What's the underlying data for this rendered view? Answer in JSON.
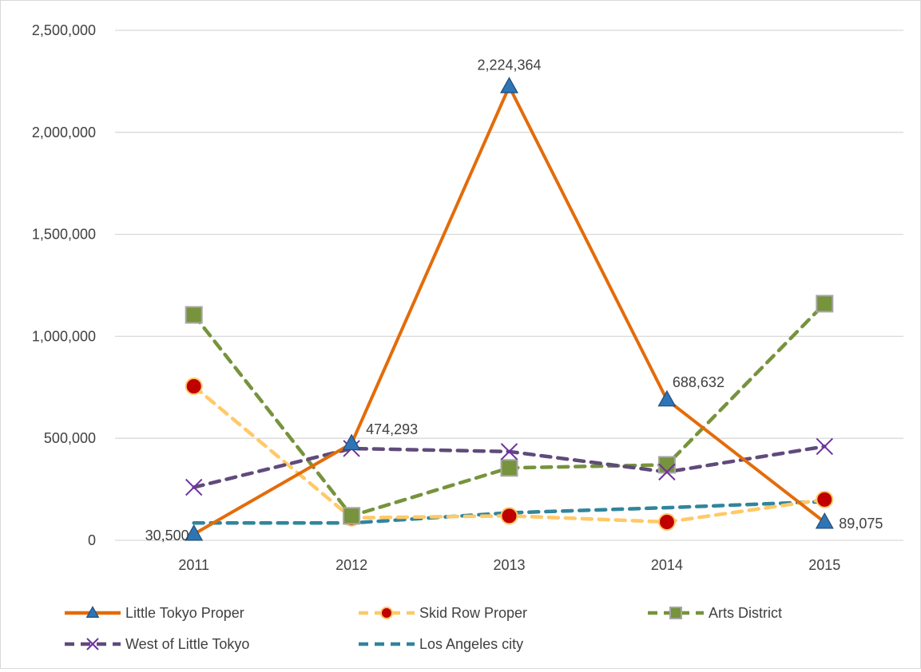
{
  "chart_data": {
    "type": "line",
    "title": "",
    "xlabel": "",
    "ylabel": "",
    "categories": [
      "2011",
      "2012",
      "2013",
      "2014",
      "2015"
    ],
    "ylim": [
      0,
      2500000
    ],
    "yticks": [
      0,
      500000,
      1000000,
      1500000,
      2000000,
      2500000
    ],
    "ytick_labels": [
      "0",
      "500,000",
      "1,000,000",
      "1,500,000",
      "2,000,000",
      "2,500,000"
    ],
    "grid": "horizontal",
    "legend_position": "bottom",
    "series": [
      {
        "name": "Little Tokyo Proper",
        "values": [
          30500,
          474293,
          2224364,
          688632,
          89075
        ],
        "color": "#e36c0a",
        "dashed": false,
        "marker": "triangle",
        "marker_color": "#2e75b6",
        "data_labels": [
          "30,500",
          "474,293",
          "2,224,364",
          "688,632",
          "89,075"
        ]
      },
      {
        "name": "Skid Row Proper",
        "values": [
          755000,
          110000,
          120000,
          90000,
          200000
        ],
        "color": "#ffc966",
        "dashed": true,
        "marker": "circle",
        "marker_color": "#c00000"
      },
      {
        "name": "Arts District",
        "values": [
          1105000,
          120000,
          355000,
          370000,
          1160000
        ],
        "color": "#77933c",
        "dashed": true,
        "marker": "square",
        "marker_color": "#77933c"
      },
      {
        "name": "West of Little Tokyo",
        "values": [
          260000,
          450000,
          435000,
          335000,
          460000
        ],
        "color": "#604a7b",
        "dashed": true,
        "marker": "x",
        "marker_color": "#7030a0"
      },
      {
        "name": "Los Angeles city",
        "values": [
          85000,
          85000,
          135000,
          160000,
          190000
        ],
        "color": "#31859c",
        "dashed": true,
        "marker": "none",
        "marker_color": "#31859c"
      }
    ]
  }
}
